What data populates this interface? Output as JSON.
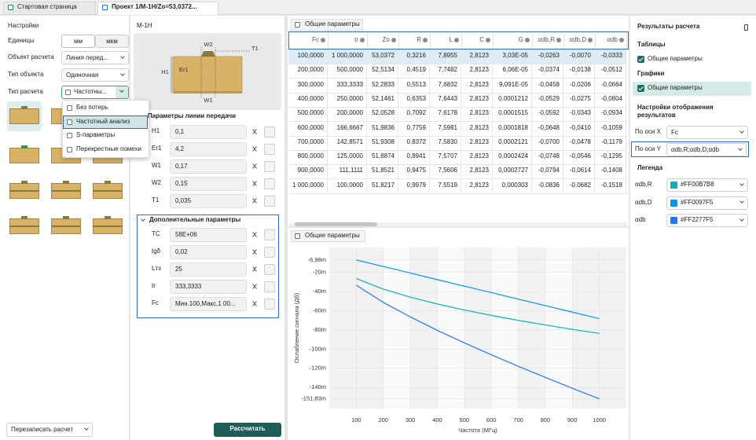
{
  "tabs": [
    "Стартовая страница",
    "Проект 1/М-1Н/Zo=53,0372..."
  ],
  "settings": {
    "title": "Настройки",
    "units_label": "Единицы",
    "units_options": [
      "мм",
      "мкм"
    ],
    "object_label": "Объект расчета",
    "object_value": "Линия перед...",
    "object_type_label": "Тип объекта",
    "object_type_value": "Одиночная",
    "calc_type_label": "Тип расчета",
    "calc_type_value": "Частотны...",
    "calc_type_options": [
      "Без потерь",
      "Частотный анализ",
      "S-параметры",
      "Перекрестные помехи"
    ],
    "overwrite": "Перезаписать расчет",
    "calculate": "Рассчитать"
  },
  "model": {
    "title": "М-1Н",
    "diagram_labels": [
      "W2",
      "T1",
      "H1",
      "Er1",
      "W1"
    ],
    "line_params_title": "Параметры линии передачи",
    "line_params": [
      {
        "name": "H1",
        "value": "0,1"
      },
      {
        "name": "Er1",
        "value": "4,2"
      },
      {
        "name": "W1",
        "value": "0,17"
      },
      {
        "name": "W2",
        "value": "0,15"
      },
      {
        "name": "T1",
        "value": "0,035"
      }
    ],
    "extra_title": "Дополнительные параметры",
    "extra_params": [
      {
        "name": "TC",
        "value": "58E+06"
      },
      {
        "name": "tgδ",
        "value": "0,02"
      },
      {
        "name": "Lтз",
        "value": "25"
      },
      {
        "name": "tr",
        "value": "333,3333"
      },
      {
        "name": "Fc",
        "value": "Мин.100,Макс.1 00..."
      }
    ]
  },
  "table": {
    "tab": "Общие параметры",
    "columns": [
      "Fc",
      "tr",
      "Zo",
      "R",
      "L",
      "C",
      "G",
      "αdb,R",
      "αdb,D",
      "αdb"
    ],
    "rows": [
      [
        "100,0000",
        "1 000,0000",
        "53,0372",
        "0,3216",
        "7,8955",
        "2,8123",
        "3,03E-05",
        "-0,0263",
        "-0,0070",
        "-0,0333"
      ],
      [
        "200,0000",
        "500,0000",
        "52,5134",
        "0,4519",
        "7,7482",
        "2,8123",
        "6,06E-05",
        "-0,0374",
        "-0,0138",
        "-0,0512"
      ],
      [
        "300,0000",
        "333,3333",
        "52,2833",
        "0,5513",
        "7,6832",
        "2,8123",
        "9,091E-05",
        "-0,0458",
        "-0,0206",
        "-0,0664"
      ],
      [
        "400,0000",
        "250,0000",
        "52,1461",
        "0,6353",
        "7,6443",
        "2,8123",
        "0,0001212",
        "-0,0529",
        "-0,0275",
        "-0,0804"
      ],
      [
        "500,0000",
        "200,0000",
        "52,0528",
        "0,7092",
        "7,6178",
        "2,8123",
        "0,0001515",
        "-0,0592",
        "-0,0343",
        "-0,0934"
      ],
      [
        "600,0000",
        "166,6667",
        "51,9836",
        "0,7759",
        "7,5981",
        "2,8123",
        "0,0001818",
        "-0,0648",
        "-0,0410",
        "-0,1059"
      ],
      [
        "700,0000",
        "142,8571",
        "51,9308",
        "0,8372",
        "7,5830",
        "2,8123",
        "0,0002121",
        "-0,0700",
        "-0,0478",
        "-0,1179"
      ],
      [
        "800,0000",
        "125,0000",
        "51,8874",
        "0,8941",
        "7,5707",
        "2,8123",
        "0,0002424",
        "-0,0748",
        "-0,0546",
        "-0,1295"
      ],
      [
        "900,0000",
        "111,1111",
        "51,8521",
        "0,9475",
        "7,5606",
        "2,8123",
        "0,0002727",
        "-0,0794",
        "-0,0614",
        "-0,1408"
      ],
      [
        "1 000,0000",
        "100,0000",
        "51,8217",
        "0,9979",
        "7,5519",
        "2,8123",
        "0,000303",
        "-0,0836",
        "-0,0682",
        "-0,1518"
      ]
    ]
  },
  "chart_data": {
    "type": "line",
    "tab": "Общие параметры",
    "x_label": "Частота (МГц)",
    "y_label": "Ослабление сигнала (Дб)",
    "x": [
      100,
      200,
      300,
      400,
      500,
      600,
      700,
      800,
      900,
      1000
    ],
    "xlim": [
      0,
      1100
    ],
    "xticks": [
      100,
      200,
      300,
      400,
      500,
      600,
      700,
      800,
      900,
      1000
    ],
    "ylim": [
      -162,
      6
    ],
    "yticks": [
      {
        "value": -6.98,
        "label": "-6,98m"
      },
      {
        "value": -20,
        "label": "-20m"
      },
      {
        "value": -40,
        "label": "-40m"
      },
      {
        "value": -60,
        "label": "-60m"
      },
      {
        "value": -80,
        "label": "-80m"
      },
      {
        "value": -100,
        "label": "-100m"
      },
      {
        "value": -120,
        "label": "-120m"
      },
      {
        "value": -140,
        "label": "-140m"
      },
      {
        "value": -151.83,
        "label": "-151,83m"
      }
    ],
    "grid": true,
    "series": [
      {
        "name": "αdb,R",
        "color": "#00B7B8",
        "values": [
          -26.3,
          -37.4,
          -45.8,
          -52.9,
          -59.2,
          -64.8,
          -70.0,
          -74.8,
          -79.4,
          -83.6
        ]
      },
      {
        "name": "αdb,D",
        "color": "#0097F5",
        "values": [
          -7.0,
          -13.8,
          -20.6,
          -27.5,
          -34.3,
          -41.0,
          -47.8,
          -54.6,
          -61.4,
          -68.2
        ]
      },
      {
        "name": "αdb",
        "color": "#2277F5",
        "values": [
          -33.3,
          -51.2,
          -66.4,
          -80.4,
          -93.4,
          -105.9,
          -117.9,
          -129.5,
          -140.8,
          -151.8
        ]
      }
    ]
  },
  "results": {
    "title": "Результаты расчета",
    "tables_title": "Таблицы",
    "tables_item": "Общие параметры",
    "charts_title": "Графики",
    "charts_item": "Общие параметры",
    "display_title": "Настройки отображения результатов",
    "x_axis_label": "По оси X",
    "x_axis_value": "Fc",
    "y_axis_label": "По оси Y",
    "y_axis_value": "αdb,R;αdb,D;αdb",
    "legend_title": "Легенда",
    "legend_colors": [
      "#FF00B7B8",
      "#FF0097F5",
      "#FF2277F5"
    ]
  }
}
